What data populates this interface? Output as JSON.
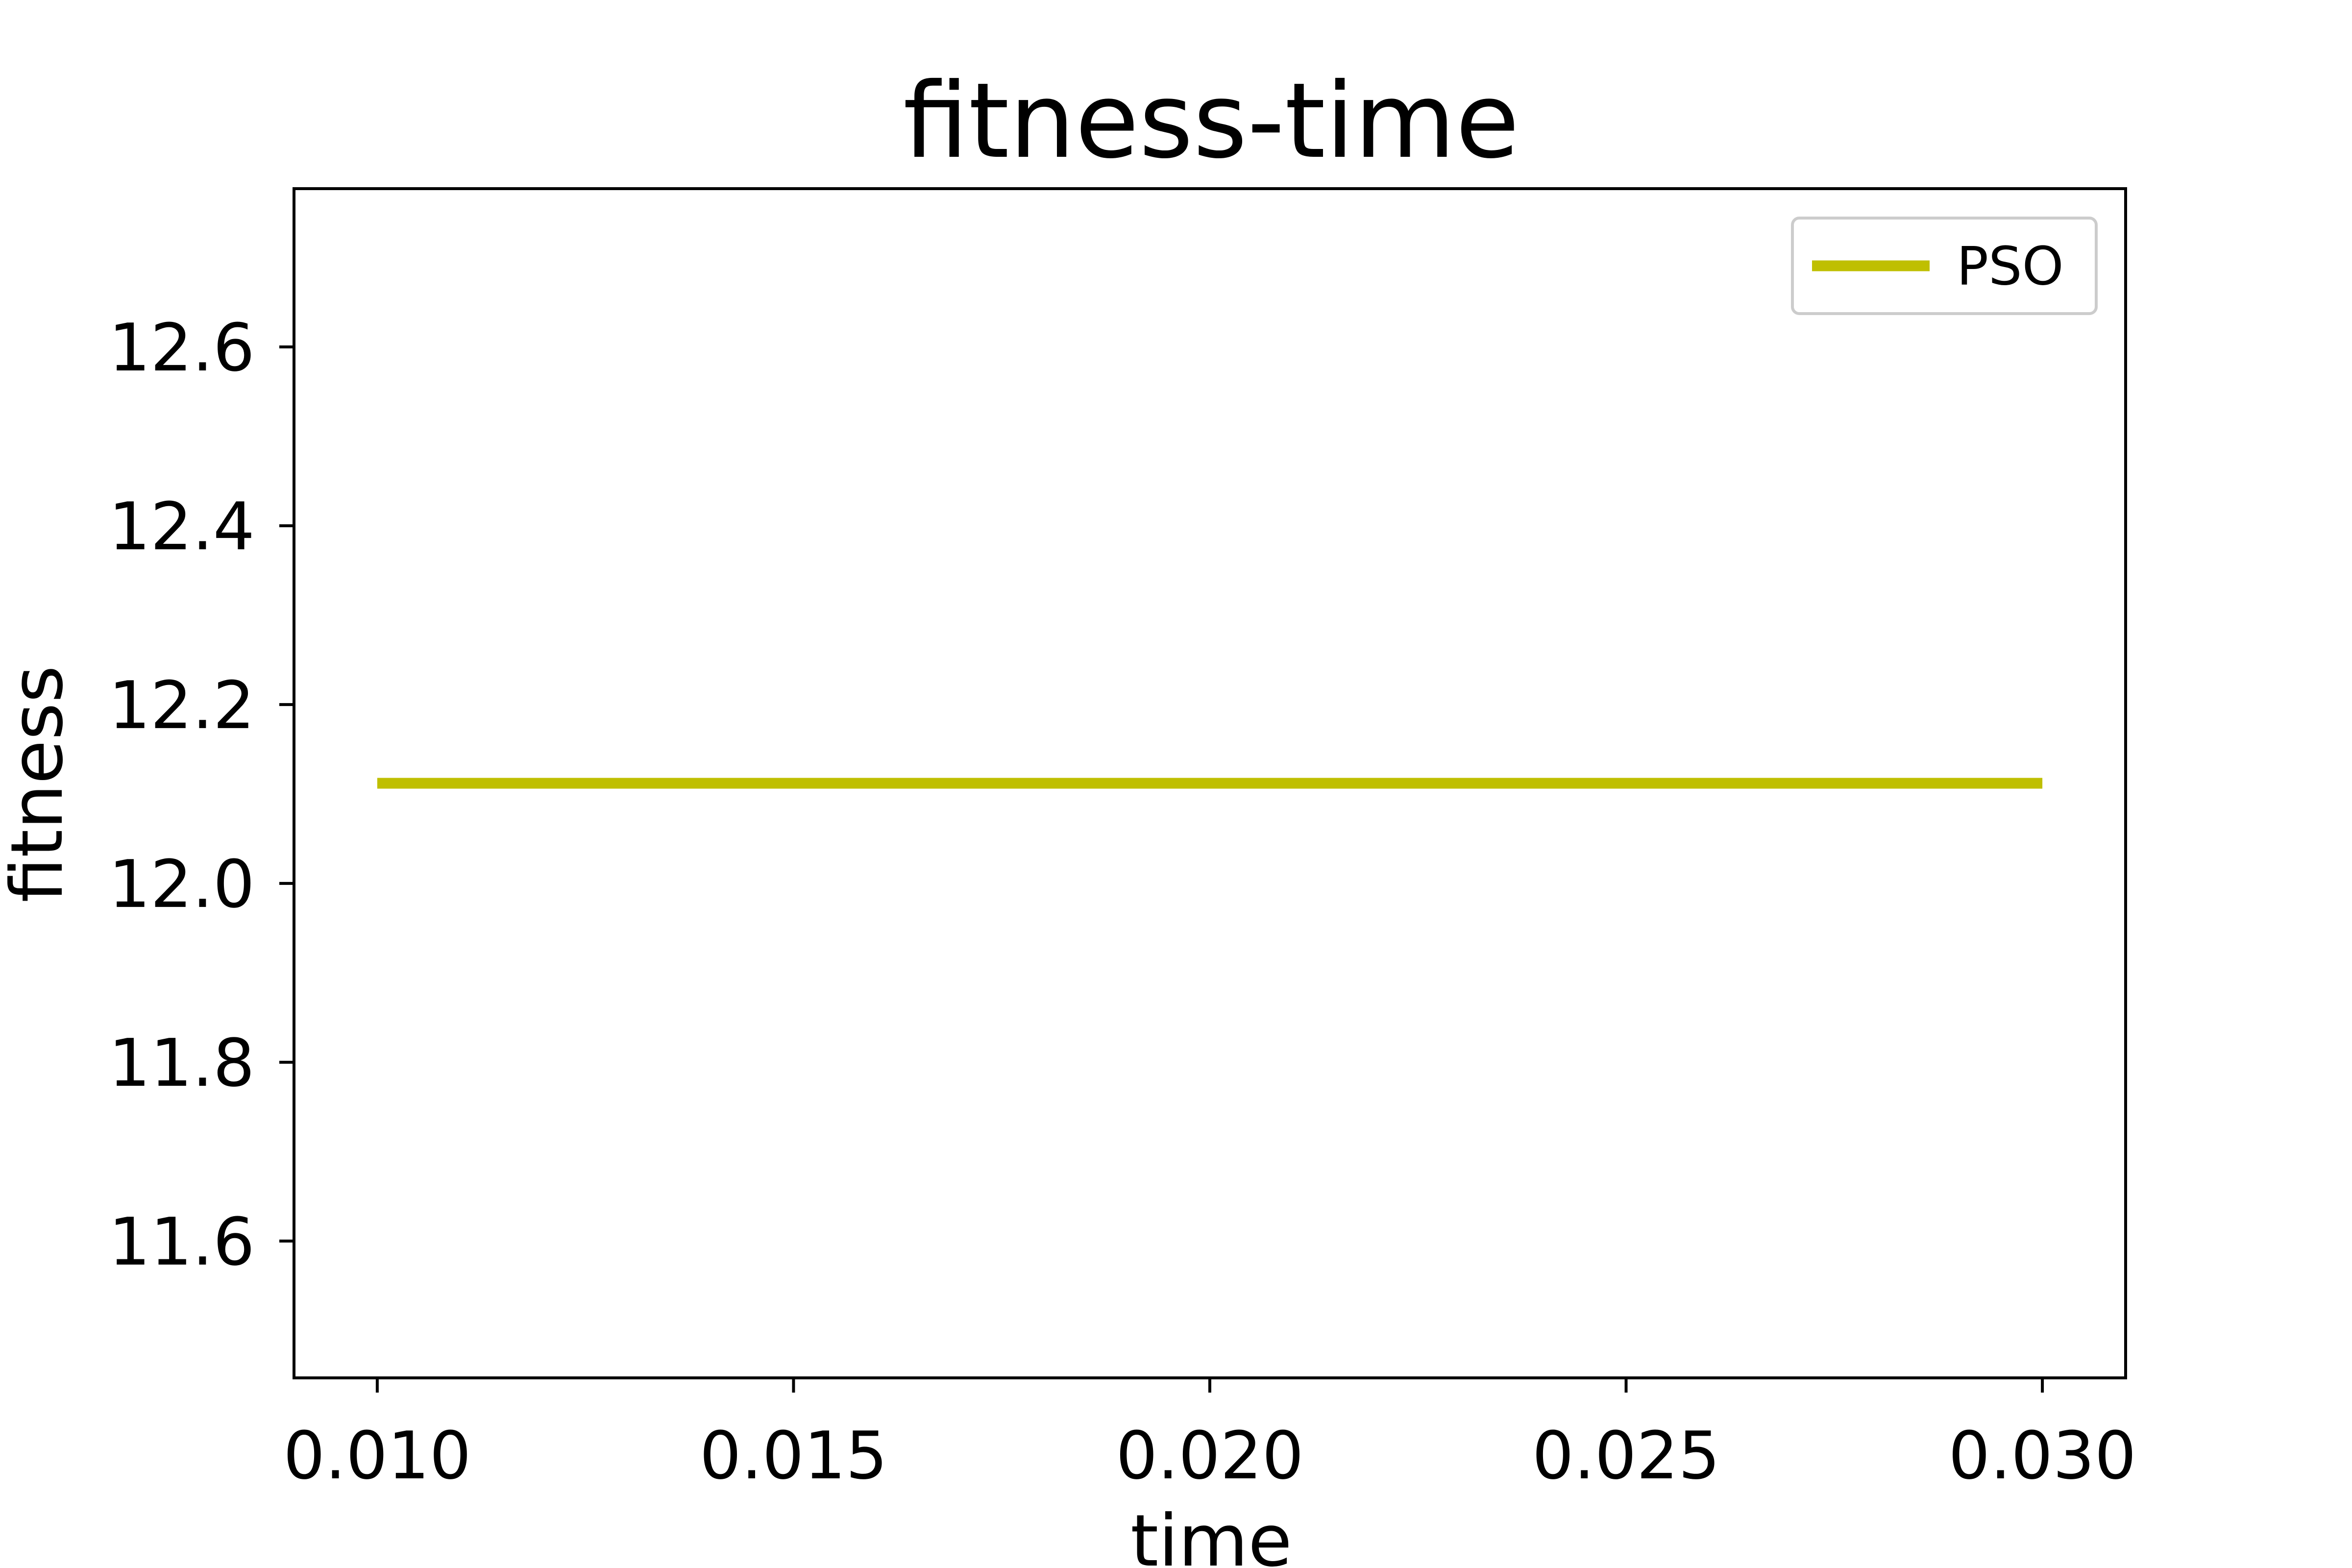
{
  "chart_data": {
    "type": "line",
    "title": "fitness-time",
    "xlabel": "time",
    "ylabel": "fitness",
    "xlim": [
      0.009,
      0.031
    ],
    "ylim": [
      11.447,
      12.777
    ],
    "x_ticks": [
      0.01,
      0.015,
      0.02,
      0.025,
      0.03
    ],
    "x_tick_labels": [
      "0.010",
      "0.015",
      "0.020",
      "0.025",
      "0.030"
    ],
    "y_ticks": [
      11.6,
      11.8,
      12.0,
      12.2,
      12.4,
      12.6
    ],
    "y_tick_labels": [
      "11.6",
      "11.8",
      "12.0",
      "12.2",
      "12.4",
      "12.6"
    ],
    "grid": false,
    "legend_position": "upper right",
    "series": [
      {
        "name": "PSO",
        "color": "#bfbf00",
        "x": [
          0.01,
          0.03
        ],
        "y": [
          12.112,
          12.112
        ]
      }
    ]
  }
}
